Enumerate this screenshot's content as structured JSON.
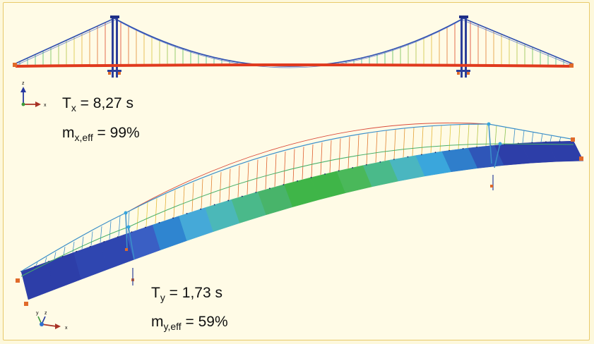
{
  "modes": [
    {
      "period_label": "T",
      "period_sub": "x",
      "period_value": "= 8,27 s",
      "mass_label": "m",
      "mass_sub": "x,eff",
      "mass_value": "= 99%",
      "view_axes": [
        "z",
        "x"
      ]
    },
    {
      "period_label": "T",
      "period_sub": "y",
      "period_value": "= 1,73 s",
      "mass_label": "m",
      "mass_sub": "y,eff",
      "mass_value": "= 59%",
      "view_axes": [
        "y",
        "z",
        "x"
      ]
    }
  ],
  "colors": {
    "background": "#fffbe6",
    "border": "#e8c96a",
    "deck_mode1": "#e03a1e",
    "main_cable": "#2f4fb0",
    "tower": "#2c3f9a",
    "support": "#e06a2a",
    "deck_low": "#2d3ea8",
    "deck_mid": "#3bb44a",
    "deck_high": "#d93b2e"
  }
}
